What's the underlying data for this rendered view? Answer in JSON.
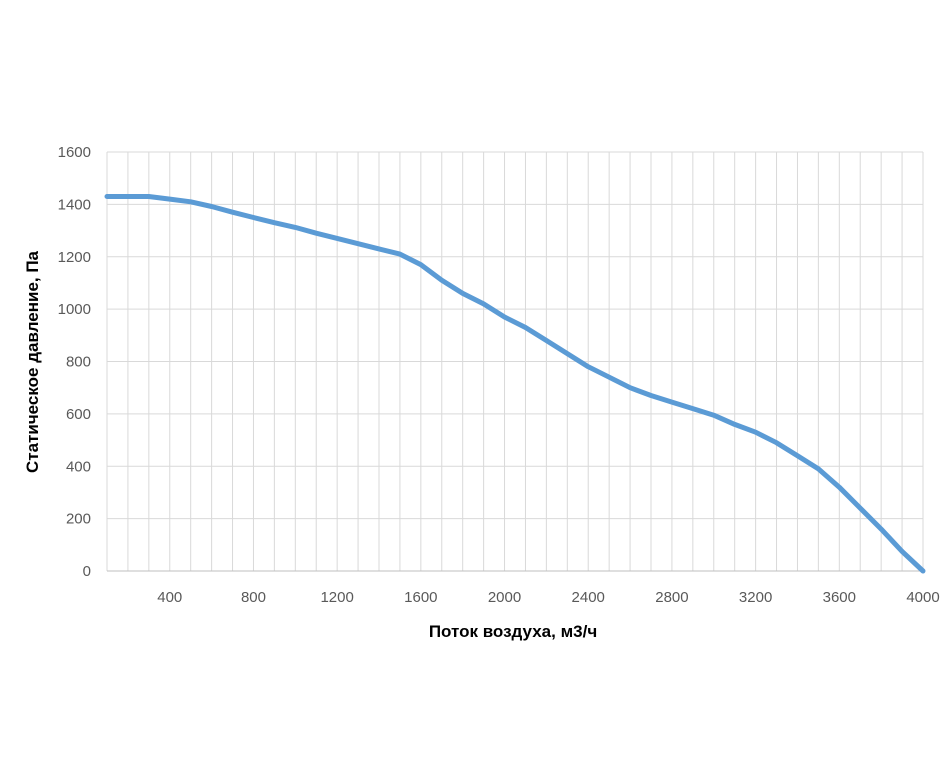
{
  "chart_data": {
    "type": "line",
    "xlabel": "Поток воздуха, м3/ч",
    "ylabel": "Статическое давление, Па",
    "xlim": [
      100,
      4000
    ],
    "ylim": [
      0,
      1600
    ],
    "x_tick_labels": [
      "400",
      "800",
      "1200",
      "1600",
      "2000",
      "2400",
      "2800",
      "3200",
      "3600",
      "4000"
    ],
    "y_tick_labels": [
      "0",
      "200",
      "400",
      "600",
      "800",
      "1000",
      "1200",
      "1400",
      "1600"
    ],
    "grid": true,
    "legend": "none",
    "series": [
      {
        "color": "#5B9BD5",
        "x": [
          100,
          200,
          300,
          400,
          500,
          600,
          700,
          800,
          900,
          1000,
          1100,
          1200,
          1300,
          1400,
          1500,
          1600,
          1700,
          1800,
          1900,
          2000,
          2100,
          2200,
          2300,
          2400,
          2500,
          2600,
          2700,
          2800,
          2900,
          3000,
          3100,
          3200,
          3300,
          3400,
          3500,
          3600,
          3700,
          3800,
          3900,
          4000
        ],
        "y": [
          1430,
          1430,
          1430,
          1420,
          1410,
          1392,
          1370,
          1350,
          1330,
          1312,
          1290,
          1270,
          1250,
          1230,
          1210,
          1170,
          1110,
          1060,
          1020,
          970,
          930,
          880,
          830,
          780,
          740,
          700,
          670,
          645,
          620,
          595,
          560,
          530,
          490,
          440,
          390,
          320,
          240,
          160,
          75,
          0
        ]
      }
    ]
  }
}
